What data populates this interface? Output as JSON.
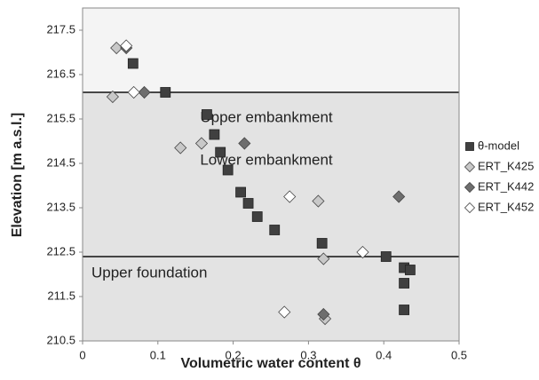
{
  "chart_data": {
    "type": "scatter",
    "xlabel": "Volumetric water content θ",
    "ylabel": "Elevation [m a.s.l.]",
    "xlim": [
      0,
      0.5
    ],
    "xticks": [
      0,
      0.1,
      0.2,
      0.3,
      0.4,
      0.5
    ],
    "ylim": [
      210.5,
      218
    ],
    "yticks": [
      210.5,
      211.5,
      212.5,
      213.5,
      214.5,
      215.5,
      216.5,
      217.5
    ],
    "boundaries": [
      216.1,
      212.4
    ],
    "annotations": [
      "Upper embankment",
      "Lower embankment",
      "Upper foundation"
    ],
    "legend": "right",
    "series": [
      {
        "name": "θ-model",
        "color": "#404040",
        "marker": "square",
        "x": [
          0.067,
          0.11,
          0.165,
          0.175,
          0.183,
          0.193,
          0.21,
          0.22,
          0.232,
          0.255,
          0.318,
          0.403,
          0.427,
          0.435,
          0.427,
          0.427
        ],
        "values": [
          216.75,
          216.1,
          215.6,
          215.15,
          214.75,
          214.35,
          213.85,
          213.6,
          213.3,
          213.0,
          212.7,
          212.4,
          212.15,
          212.1,
          211.8,
          211.2
        ]
      },
      {
        "name": "ERT_K425",
        "color": "#c8c8c8",
        "marker": "diamond",
        "x": [
          0.045,
          0.04,
          0.13,
          0.158,
          0.313,
          0.32,
          0.322
        ],
        "values": [
          217.1,
          216.0,
          214.85,
          214.95,
          213.65,
          212.35,
          211.0
        ]
      },
      {
        "name": "ERT_K442",
        "color": "#6e6e6e",
        "marker": "diamond",
        "x": [
          0.058,
          0.082,
          0.215,
          0.42,
          0.32
        ],
        "values": [
          217.1,
          216.1,
          214.95,
          213.75,
          211.1
        ]
      },
      {
        "name": "ERT_K452",
        "color": "#ffffff",
        "marker": "diamond",
        "x": [
          0.058,
          0.068,
          0.275,
          0.372,
          0.268
        ],
        "values": [
          217.15,
          216.1,
          213.75,
          212.5,
          211.15
        ]
      }
    ]
  }
}
